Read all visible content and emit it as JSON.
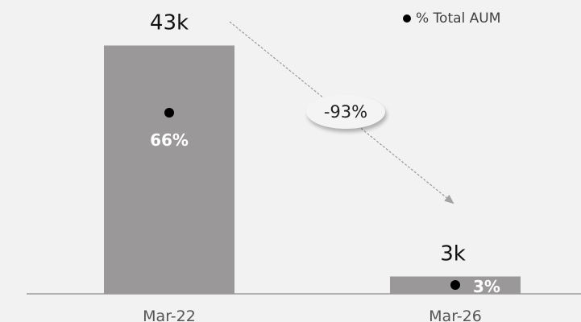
{
  "legend": {
    "label": "% Total AUM"
  },
  "change_label": "-93%",
  "colors": {
    "bar": "#9a9898",
    "axis": "#8a8a8a",
    "arrow": "#9a9a9a",
    "dot": "#000000",
    "background": "#f2f2f2"
  },
  "chart_data": {
    "type": "bar",
    "categories": [
      "Mar-22",
      "Mar-26"
    ],
    "values": [
      43,
      3
    ],
    "value_labels": [
      "43k",
      "3k"
    ],
    "secondary_series": {
      "name": "% Total AUM",
      "values": [
        66,
        3
      ],
      "labels": [
        "66%",
        "3%"
      ]
    },
    "annotation": "-93%",
    "ylim": [
      0,
      46
    ],
    "grid": false,
    "legend_position": "top-right"
  }
}
